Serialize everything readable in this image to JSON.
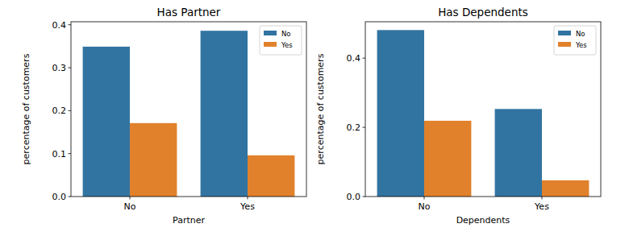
{
  "chart_data": [
    {
      "type": "bar",
      "title": "Has Partner",
      "x_label": "Partner",
      "y_label": "percentage of customers",
      "categories": [
        "No",
        "Yes"
      ],
      "series": [
        {
          "name": "No",
          "color": "#3274a1",
          "values": [
            0.349,
            0.386
          ]
        },
        {
          "name": "Yes",
          "color": "#e1812c",
          "values": [
            0.171,
            0.096
          ]
        }
      ],
      "ylim": [
        0,
        0.407
      ],
      "yticks": [
        {
          "value": 0,
          "label": "0.0"
        },
        0.1,
        0.2,
        0.3,
        0.4
      ],
      "legend": "upper right"
    },
    {
      "type": "bar",
      "title": "Has Dependents",
      "x_label": "Dependents",
      "y_label": "percentage of customers",
      "categories": [
        "No",
        "Yes"
      ],
      "series": [
        {
          "name": "No",
          "color": "#3274a1",
          "values": [
            0.481,
            0.253
          ]
        },
        {
          "name": "Yes",
          "color": "#e1812c",
          "values": [
            0.219,
            0.047
          ]
        }
      ],
      "ylim": [
        0,
        0.505
      ],
      "yticks": [
        {
          "value": 0,
          "label": "0.0"
        },
        0.2,
        0.4
      ],
      "legend": "upper right"
    }
  ]
}
